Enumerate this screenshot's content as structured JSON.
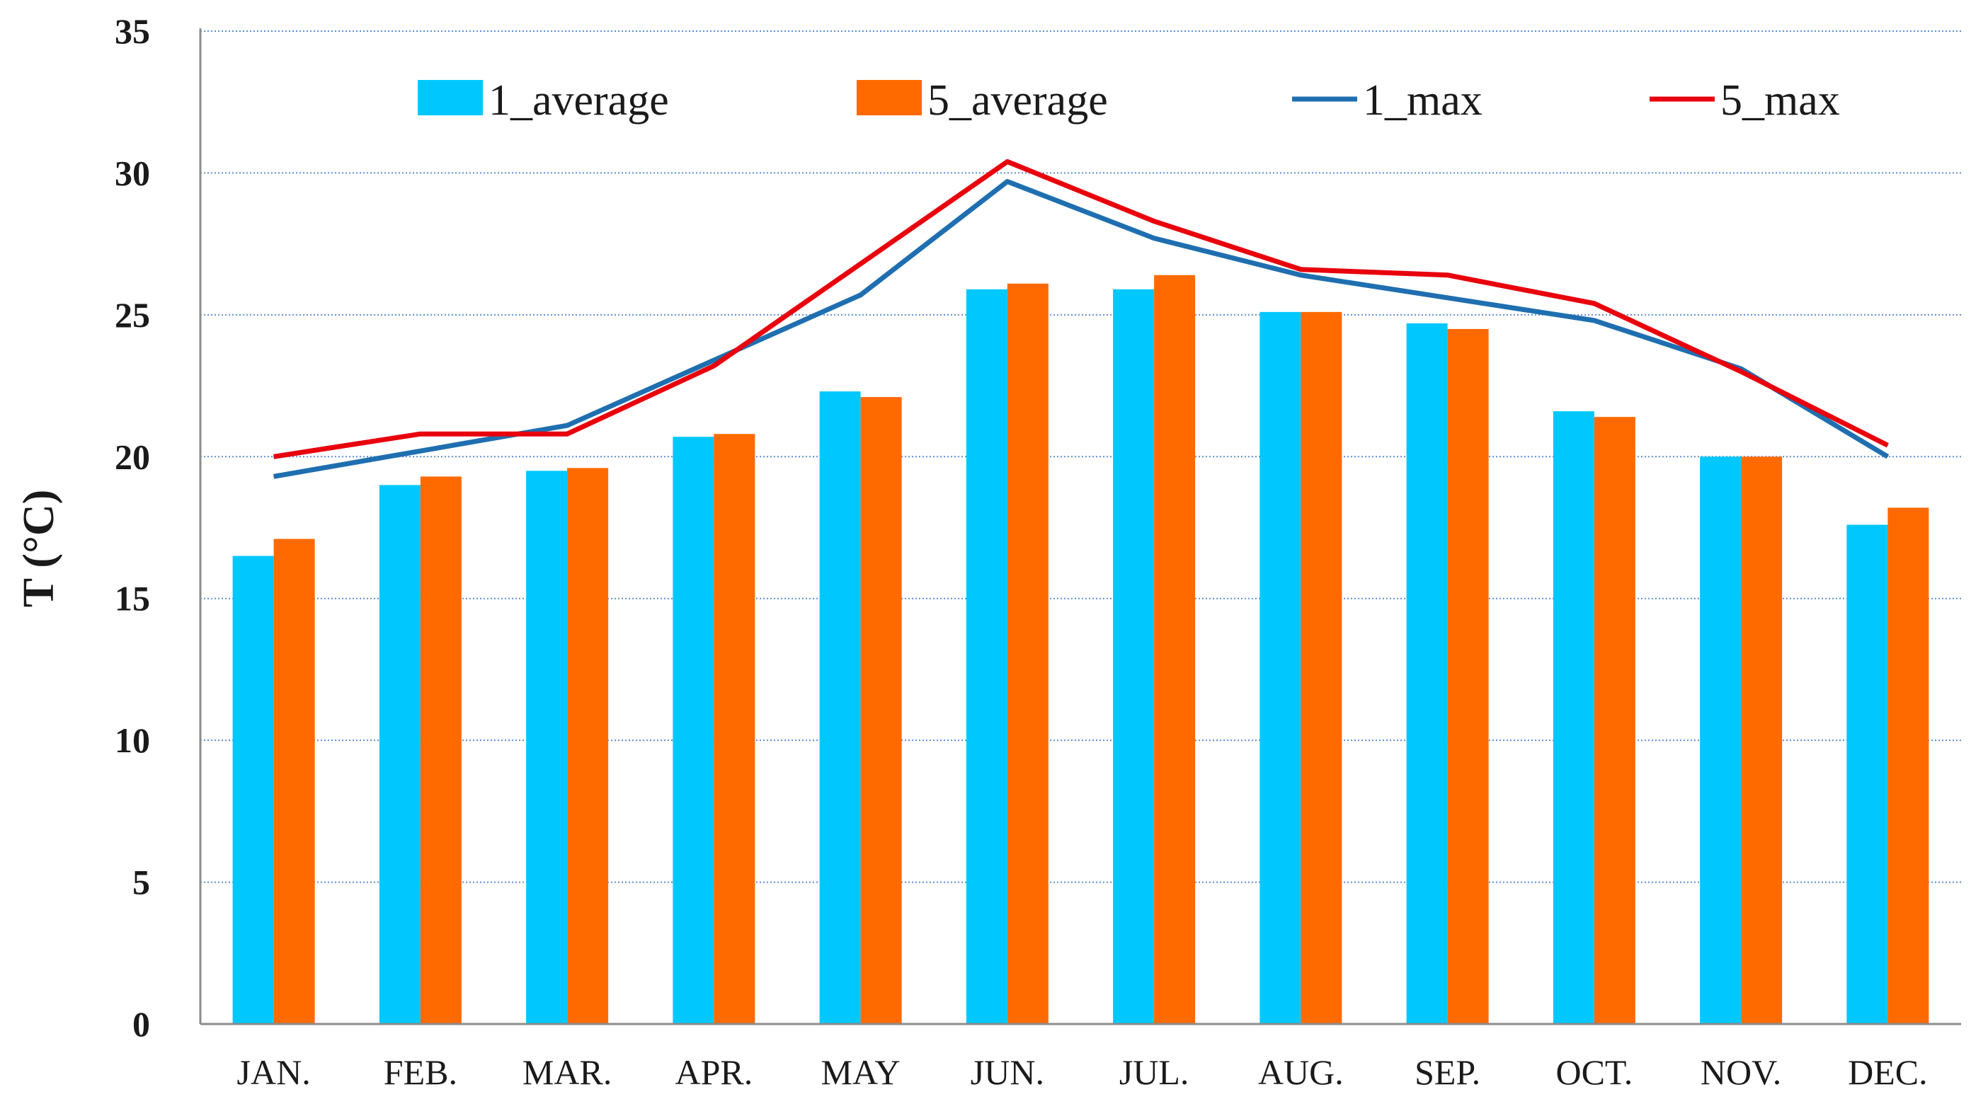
{
  "chart_data": {
    "type": "bar",
    "title": "",
    "xlabel": "",
    "ylabel": "T (°C)",
    "ylim": [
      0,
      35
    ],
    "yticks": [
      0,
      5,
      10,
      15,
      20,
      25,
      30,
      35
    ],
    "grid": true,
    "legend_position": "top",
    "categories": [
      "JAN.",
      "FEB.",
      "MAR.",
      "APR.",
      "MAY",
      "JUN.",
      "JUL.",
      "AUG.",
      "SEP.",
      "OCT.",
      "NOV.",
      "DEC."
    ],
    "bar_series": [
      {
        "name": "1_average",
        "color": "#00c8ff",
        "values": [
          16.5,
          19.0,
          19.5,
          20.7,
          22.3,
          25.9,
          25.9,
          25.1,
          24.7,
          21.6,
          20.0,
          17.6
        ]
      },
      {
        "name": "5_average",
        "color": "#ff6a00",
        "values": [
          17.1,
          19.3,
          19.6,
          20.8,
          22.1,
          26.1,
          26.4,
          25.1,
          24.5,
          21.4,
          20.0,
          18.2
        ]
      }
    ],
    "line_series": [
      {
        "name": "1_max",
        "color": "#1f6fb0",
        "values": [
          19.3,
          20.2,
          21.1,
          23.4,
          25.7,
          29.7,
          27.7,
          26.4,
          25.6,
          24.8,
          23.1,
          20.0
        ]
      },
      {
        "name": "5_max",
        "color": "#e8000c",
        "values": [
          20.0,
          20.8,
          20.8,
          23.2,
          26.8,
          30.4,
          28.3,
          26.6,
          26.4,
          25.4,
          23.0,
          20.4
        ]
      }
    ]
  }
}
